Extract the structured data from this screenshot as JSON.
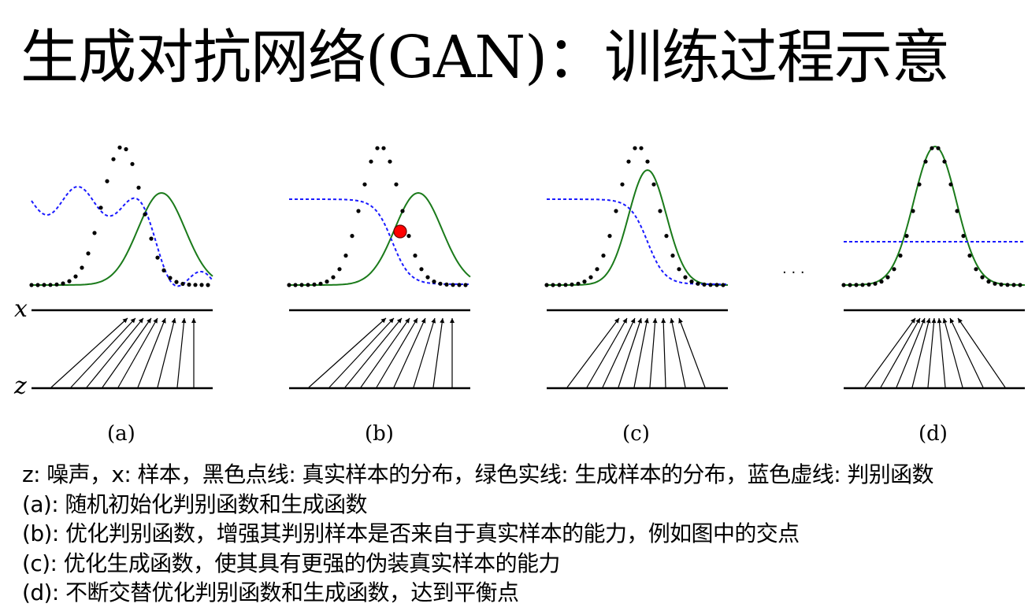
{
  "slide": {
    "title_cn": "生成对抗网络",
    "title_latin": "(GAN)",
    "title_tail": "：训练过程示意"
  },
  "figure": {
    "axis_x_label": "x",
    "axis_z_label": "z",
    "ellipsis": "· · ·",
    "panels": [
      {
        "id": "a",
        "caption": "(a)"
      },
      {
        "id": "b",
        "caption": "(b)"
      },
      {
        "id": "c",
        "caption": "(c)"
      },
      {
        "id": "d",
        "caption": "(d)"
      }
    ],
    "colors": {
      "real_distribution": "#000000",
      "generated_distribution": "#1a7a1a",
      "discriminator": "#1a1aff",
      "intersection_marker": "#ff0000"
    }
  },
  "description": {
    "lines": [
      "z: 噪声，x: 样本，黑色点线: 真实样本的分布，绿色实线: 生成样本的分布，蓝色虚线: 判别函数",
      "(a): 随机初始化判别函数和生成函数",
      "(b): 优化判别函数，增强其判别样本是否来自于真实样本的能力，例如图中的交点",
      "(c): 优化生成函数，使其具有更强的伪装真实样本的能力",
      "(d): 不断交替优化判别函数和生成函数，达到平衡点"
    ]
  }
}
